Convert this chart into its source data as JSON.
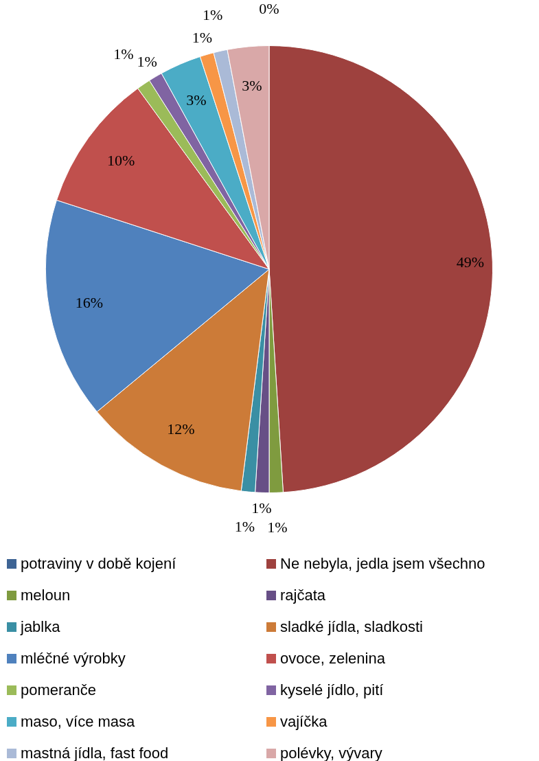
{
  "chart_data": {
    "type": "pie",
    "categories": [
      "potraviny v době kojení",
      "Ne nebyla, jedla jsem všechno",
      "meloun",
      "rajčata",
      "jablka",
      "sladké jídla, sladkosti",
      "mléčné výrobky",
      "ovoce, zelenina",
      "pomeranče",
      "kyselé jídlo, pití",
      "maso, více masa",
      "vajíčka",
      "mastná jídla, fast food",
      "polévky, vývary"
    ],
    "values": [
      0,
      49,
      1,
      1,
      1,
      12,
      16,
      10,
      1,
      1,
      3,
      1,
      1,
      3
    ],
    "value_labels": [
      "0%",
      "49%",
      "1%",
      "1%",
      "1%",
      "12%",
      "16%",
      "10%",
      "1%",
      "1%",
      "3%",
      "1%",
      "1%",
      "3%"
    ],
    "colors": [
      "#3e6494",
      "#9e413e",
      "#7f9b3f",
      "#674f86",
      "#3a8fa4",
      "#cc7b38",
      "#4f81bd",
      "#c0504d",
      "#9bbb59",
      "#8064a2",
      "#4bacc6",
      "#f79646",
      "#aabad7",
      "#d9a8a8"
    ],
    "legend": "bottom"
  }
}
